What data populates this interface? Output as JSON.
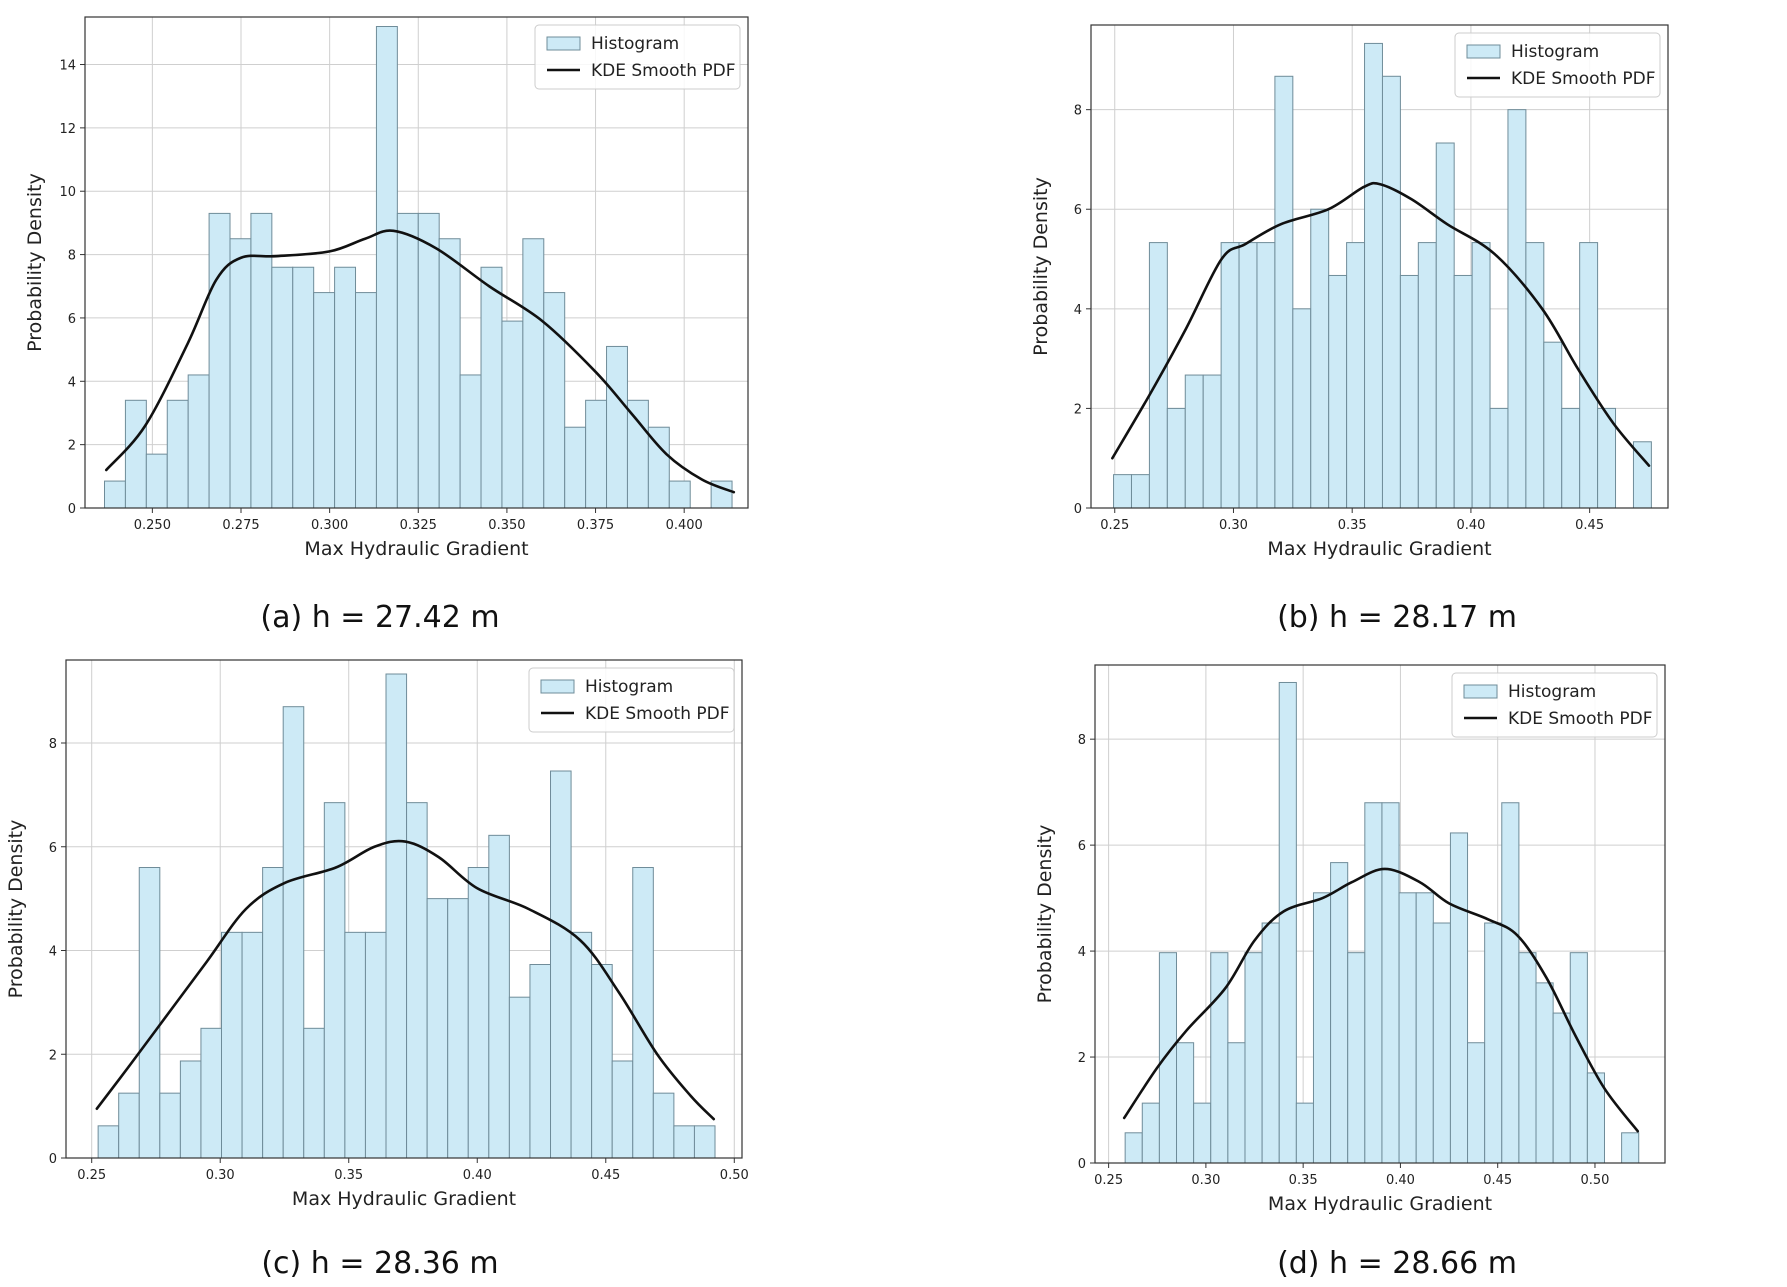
{
  "chart_data": [
    {
      "type": "bar",
      "caption": "(a) h = 27.42 m",
      "xlabel": "Max Hydraulic Gradient",
      "ylabel": "Probability Density",
      "xlim": [
        0.231,
        0.418
      ],
      "ylim": [
        0,
        15.5
      ],
      "xticks": [
        "0.250",
        "0.275",
        "0.300",
        "0.325",
        "0.350",
        "0.375",
        "0.400"
      ],
      "xtick_values": [
        0.25,
        0.275,
        0.3,
        0.325,
        0.35,
        0.375,
        0.4
      ],
      "yticks": [
        "0",
        "2",
        "4",
        "6",
        "8",
        "10",
        "12",
        "14"
      ],
      "ytick_values": [
        0,
        2,
        4,
        6,
        8,
        10,
        12,
        14
      ],
      "grid": true,
      "legend": {
        "position": "top-right",
        "histogram_label": "Histogram",
        "kde_label": "KDE Smooth PDF"
      },
      "series": [
        {
          "name": "Histogram",
          "type": "bar",
          "bin_start": 0.2365,
          "bin_width": 0.0059,
          "values": [
            0.85,
            3.4,
            1.7,
            3.4,
            4.2,
            9.3,
            8.5,
            9.3,
            7.6,
            7.6,
            6.8,
            7.6,
            6.8,
            15.2,
            9.3,
            9.3,
            8.5,
            4.2,
            7.6,
            5.9,
            8.5,
            6.8,
            2.55,
            3.4,
            5.1,
            3.4,
            2.55,
            0.85,
            0,
            0.85
          ]
        },
        {
          "name": "KDE Smooth PDF",
          "type": "line",
          "x": [
            0.237,
            0.248,
            0.26,
            0.268,
            0.275,
            0.285,
            0.3,
            0.31,
            0.318,
            0.33,
            0.345,
            0.36,
            0.375,
            0.385,
            0.395,
            0.405,
            0.414
          ],
          "y": [
            1.2,
            2.6,
            5.2,
            7.2,
            7.9,
            7.95,
            8.1,
            8.5,
            8.75,
            8.2,
            7.0,
            5.9,
            4.3,
            3.0,
            1.7,
            0.9,
            0.5
          ]
        }
      ]
    },
    {
      "type": "bar",
      "caption": "(b) h = 28.17 m",
      "xlabel": "Max Hydraulic Gradient",
      "ylabel": "Probability Density",
      "xlim": [
        0.24,
        0.483
      ],
      "ylim": [
        0,
        9.7
      ],
      "xticks": [
        "0.25",
        "0.30",
        "0.35",
        "0.40",
        "0.45"
      ],
      "xtick_values": [
        0.25,
        0.3,
        0.35,
        0.4,
        0.45
      ],
      "yticks": [
        "0",
        "2",
        "4",
        "6",
        "8"
      ],
      "ytick_values": [
        0,
        2,
        4,
        6,
        8
      ],
      "grid": true,
      "legend": {
        "position": "top-right",
        "histogram_label": "Histogram",
        "kde_label": "KDE Smooth PDF"
      },
      "series": [
        {
          "name": "Histogram",
          "type": "bar",
          "bin_start": 0.2495,
          "bin_width": 0.00755,
          "values": [
            0.67,
            0.67,
            5.33,
            2.0,
            2.67,
            2.67,
            5.33,
            5.33,
            5.33,
            8.67,
            4.0,
            6.0,
            4.67,
            5.33,
            9.33,
            8.67,
            4.67,
            5.33,
            7.33,
            4.67,
            5.33,
            2.0,
            8.0,
            5.33,
            3.33,
            2.0,
            5.33,
            2.0,
            0,
            1.33
          ]
        },
        {
          "name": "KDE Smooth PDF",
          "type": "line",
          "x": [
            0.249,
            0.265,
            0.28,
            0.295,
            0.305,
            0.32,
            0.34,
            0.355,
            0.362,
            0.375,
            0.39,
            0.41,
            0.43,
            0.445,
            0.46,
            0.475
          ],
          "y": [
            1.0,
            2.3,
            3.6,
            5.0,
            5.3,
            5.7,
            6.0,
            6.45,
            6.5,
            6.2,
            5.7,
            5.1,
            4.0,
            2.8,
            1.7,
            0.85
          ]
        }
      ]
    },
    {
      "type": "bar",
      "caption": "(c) h = 28.36 m",
      "xlabel": "Max Hydraulic Gradient",
      "ylabel": "Probability Density",
      "xlim": [
        0.24,
        0.503
      ],
      "ylim": [
        0,
        9.6
      ],
      "xticks": [
        "0.25",
        "0.30",
        "0.35",
        "0.40",
        "0.45",
        "0.50"
      ],
      "xtick_values": [
        0.25,
        0.3,
        0.35,
        0.4,
        0.45,
        0.5
      ],
      "yticks": [
        "0",
        "2",
        "4",
        "6",
        "8"
      ],
      "ytick_values": [
        0,
        2,
        4,
        6,
        8
      ],
      "grid": true,
      "legend": {
        "position": "top-right",
        "histogram_label": "Histogram",
        "kde_label": "KDE Smooth PDF"
      },
      "series": [
        {
          "name": "Histogram",
          "type": "bar",
          "bin_start": 0.2525,
          "bin_width": 0.008,
          "values": [
            0.62,
            1.25,
            5.6,
            1.25,
            1.87,
            2.5,
            4.35,
            4.35,
            5.6,
            8.7,
            2.5,
            6.85,
            4.35,
            4.35,
            9.33,
            6.85,
            5.0,
            5.0,
            5.6,
            6.22,
            3.1,
            3.73,
            7.46,
            4.35,
            3.73,
            1.87,
            5.6,
            1.25,
            0.62,
            0.62
          ]
        },
        {
          "name": "KDE Smooth PDF",
          "type": "line",
          "x": [
            0.252,
            0.265,
            0.28,
            0.295,
            0.31,
            0.325,
            0.345,
            0.36,
            0.372,
            0.385,
            0.4,
            0.42,
            0.44,
            0.455,
            0.47,
            0.483,
            0.492
          ],
          "y": [
            0.95,
            1.8,
            2.8,
            3.8,
            4.8,
            5.3,
            5.6,
            6.0,
            6.1,
            5.8,
            5.2,
            4.8,
            4.2,
            3.2,
            2.0,
            1.2,
            0.75
          ]
        }
      ]
    },
    {
      "type": "bar",
      "caption": "(d) h = 28.66 m",
      "xlabel": "Max Hydraulic Gradient",
      "ylabel": "Probability Density",
      "xlim": [
        0.243,
        0.536
      ],
      "ylim": [
        0,
        9.4
      ],
      "xticks": [
        "0.25",
        "0.30",
        "0.35",
        "0.40",
        "0.45",
        "0.50"
      ],
      "xtick_values": [
        0.25,
        0.3,
        0.35,
        0.4,
        0.45,
        0.5
      ],
      "yticks": [
        "0",
        "2",
        "4",
        "6",
        "8"
      ],
      "ytick_values": [
        0,
        2,
        4,
        6,
        8
      ],
      "grid": true,
      "legend": {
        "position": "top-right",
        "histogram_label": "Histogram",
        "kde_label": "KDE Smooth PDF"
      },
      "series": [
        {
          "name": "Histogram",
          "type": "bar",
          "bin_start": 0.2585,
          "bin_width": 0.0088,
          "values": [
            0.57,
            1.13,
            3.97,
            2.27,
            1.13,
            3.97,
            2.27,
            3.97,
            4.53,
            9.07,
            1.13,
            5.1,
            5.67,
            3.97,
            6.8,
            6.8,
            5.1,
            5.1,
            4.53,
            6.23,
            2.27,
            4.53,
            6.8,
            3.97,
            3.4,
            2.83,
            3.97,
            1.7,
            0,
            0.57
          ]
        },
        {
          "name": "KDE Smooth PDF",
          "type": "line",
          "x": [
            0.258,
            0.275,
            0.29,
            0.31,
            0.325,
            0.34,
            0.36,
            0.375,
            0.392,
            0.41,
            0.425,
            0.445,
            0.46,
            0.475,
            0.49,
            0.505,
            0.522
          ],
          "y": [
            0.85,
            1.8,
            2.5,
            3.3,
            4.2,
            4.75,
            5.0,
            5.3,
            5.55,
            5.3,
            4.9,
            4.6,
            4.3,
            3.5,
            2.4,
            1.4,
            0.6
          ]
        }
      ]
    }
  ]
}
